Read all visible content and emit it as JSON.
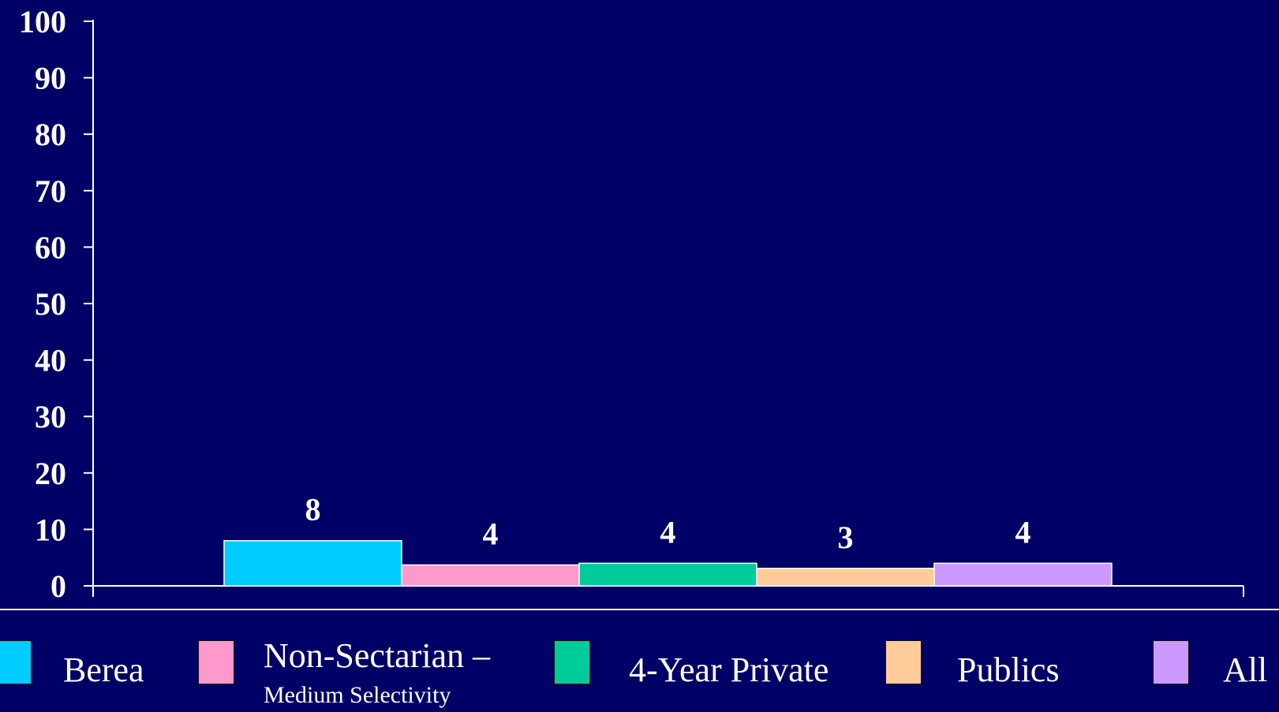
{
  "chart_data": {
    "type": "bar",
    "categories": [
      "Berea",
      "Non-Sectarian – Medium Selectivity",
      "4-Year Private",
      "Publics",
      "All"
    ],
    "values": [
      8,
      3.7,
      4,
      3.1,
      4
    ],
    "data_labels": [
      "8",
      "4",
      "4",
      "3",
      "4"
    ],
    "colors": [
      "#00ccff",
      "#ff99cc",
      "#00cc99",
      "#ffcc99",
      "#cc99ff"
    ],
    "ylim": [
      0,
      100
    ],
    "yticks": [
      "0",
      "10",
      "20",
      "30",
      "40",
      "50",
      "60",
      "70",
      "80",
      "90",
      "100"
    ],
    "grid": false,
    "legend_placement": "bottom"
  },
  "legend": [
    {
      "label": "Berea",
      "sublabel": ""
    },
    {
      "label": "Non-Sectarian –",
      "sublabel": "Medium Selectivity"
    },
    {
      "label": "4-Year Private",
      "sublabel": ""
    },
    {
      "label": "Publics",
      "sublabel": ""
    },
    {
      "label": "All",
      "sublabel": ""
    }
  ],
  "colors": {
    "background": "#000066",
    "axis": "#ffffff"
  }
}
